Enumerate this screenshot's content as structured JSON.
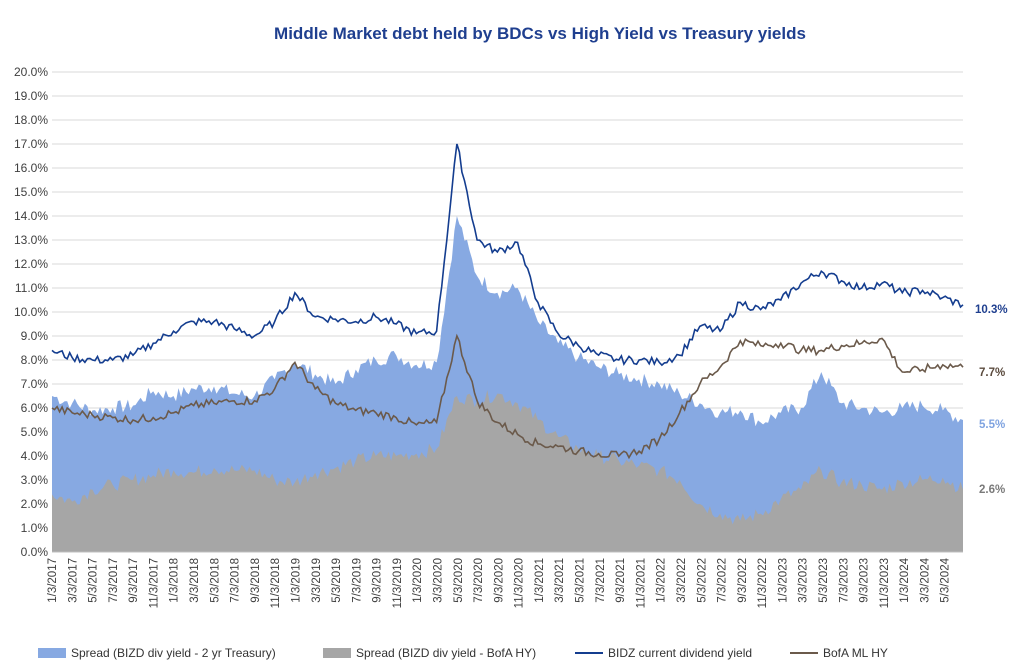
{
  "chart_data": {
    "type": "area",
    "title": "Middle Market debt held by BDCs vs High Yield vs Treasury yields",
    "xlabel": "",
    "ylabel": "",
    "ylim": [
      0,
      20
    ],
    "grid": true,
    "legend_position": "bottom",
    "y_ticks": [
      "0.0%",
      "1.0%",
      "2.0%",
      "3.0%",
      "4.0%",
      "5.0%",
      "6.0%",
      "7.0%",
      "8.0%",
      "9.0%",
      "10.0%",
      "11.0%",
      "12.0%",
      "13.0%",
      "14.0%",
      "15.0%",
      "16.0%",
      "17.0%",
      "18.0%",
      "19.0%",
      "20.0%"
    ],
    "x_ticks": [
      "1/3/2017",
      "3/3/2017",
      "5/3/2017",
      "7/3/2017",
      "9/3/2017",
      "11/3/2017",
      "1/3/2018",
      "3/3/2018",
      "5/3/2018",
      "7/3/2018",
      "9/3/2018",
      "11/3/2018",
      "1/3/2019",
      "3/3/2019",
      "5/3/2019",
      "7/3/2019",
      "9/3/2019",
      "11/3/2019",
      "1/3/2020",
      "3/3/2020",
      "5/3/2020",
      "7/3/2020",
      "9/3/2020",
      "11/3/2020",
      "1/3/2021",
      "3/3/2021",
      "5/3/2021",
      "7/3/2021",
      "9/3/2021",
      "11/3/2021",
      "1/3/2022",
      "3/3/2022",
      "5/3/2022",
      "7/3/2022",
      "9/3/2022",
      "11/3/2022",
      "1/3/2023",
      "3/3/2023",
      "5/3/2023",
      "7/3/2023",
      "9/3/2023",
      "11/3/2023",
      "1/3/2024",
      "3/3/2024",
      "5/3/2024"
    ],
    "x": [
      "2017-01",
      "2017-03",
      "2017-05",
      "2017-07",
      "2017-09",
      "2017-11",
      "2018-01",
      "2018-03",
      "2018-05",
      "2018-07",
      "2018-09",
      "2018-11",
      "2019-01",
      "2019-03",
      "2019-05",
      "2019-07",
      "2019-09",
      "2019-11",
      "2020-01",
      "2020-03",
      "2020-05",
      "2020-07",
      "2020-09",
      "2020-11",
      "2021-01",
      "2021-03",
      "2021-05",
      "2021-07",
      "2021-09",
      "2021-11",
      "2022-01",
      "2022-03",
      "2022-05",
      "2022-07",
      "2022-09",
      "2022-11",
      "2023-01",
      "2023-03",
      "2023-05",
      "2023-07",
      "2023-09",
      "2023-11",
      "2024-01",
      "2024-03",
      "2024-05",
      "2024-07"
    ],
    "series": [
      {
        "name": "Spread (BIZD div yield - 2 yr Treasury)",
        "type": "area",
        "color": "#87a9e2",
        "values": [
          6.5,
          6.2,
          5.9,
          6.0,
          6.1,
          6.7,
          6.5,
          6.8,
          6.9,
          6.6,
          6.5,
          7.2,
          7.9,
          7.4,
          7.0,
          7.6,
          8.0,
          8.2,
          7.8,
          7.9,
          14.0,
          11.5,
          10.8,
          11.0,
          9.6,
          8.7,
          8.1,
          7.7,
          7.4,
          7.2,
          7.0,
          6.6,
          6.2,
          5.8,
          5.9,
          5.4,
          5.8,
          6.0,
          7.5,
          6.2,
          6.0,
          5.8,
          6.0,
          6.1,
          5.9,
          5.5
        ]
      },
      {
        "name": "Spread (BIZD div yield - BofA HY)",
        "type": "area",
        "color": "#a6a6a6",
        "values": [
          2.4,
          2.1,
          2.6,
          2.8,
          3.0,
          3.2,
          3.4,
          3.3,
          3.5,
          3.4,
          3.4,
          3.0,
          2.9,
          3.3,
          3.5,
          3.8,
          4.0,
          4.0,
          4.1,
          4.3,
          6.5,
          6.3,
          6.6,
          6.2,
          5.5,
          4.8,
          4.3,
          4.0,
          3.8,
          3.6,
          3.4,
          3.0,
          2.0,
          1.6,
          1.3,
          1.6,
          2.2,
          2.6,
          3.4,
          2.9,
          2.8,
          2.6,
          2.9,
          3.0,
          3.1,
          2.6
        ]
      },
      {
        "name": "BIDZ current dividend yield",
        "type": "line",
        "color": "#143d8f",
        "values": [
          8.4,
          8.1,
          8.0,
          8.0,
          8.2,
          8.7,
          9.2,
          9.6,
          9.6,
          9.3,
          9.0,
          9.6,
          10.8,
          9.8,
          9.7,
          9.6,
          9.8,
          9.5,
          9.1,
          9.2,
          17.0,
          13.0,
          12.5,
          12.9,
          10.4,
          9.1,
          8.6,
          8.2,
          8.0,
          8.0,
          7.9,
          8.2,
          9.4,
          9.2,
          10.4,
          10.1,
          10.5,
          11.2,
          11.7,
          11.3,
          11.0,
          11.2,
          10.8,
          10.9,
          10.6,
          10.3
        ]
      },
      {
        "name": "BofA ML HY",
        "type": "line",
        "color": "#6b5a4b",
        "values": [
          6.0,
          5.8,
          5.7,
          5.6,
          5.5,
          5.6,
          5.8,
          6.1,
          6.2,
          6.3,
          6.3,
          6.8,
          7.9,
          6.8,
          6.2,
          5.9,
          5.8,
          5.6,
          5.3,
          5.4,
          9.0,
          6.3,
          5.4,
          4.9,
          4.5,
          4.4,
          4.2,
          4.1,
          4.0,
          4.2,
          4.7,
          5.8,
          7.0,
          7.7,
          8.8,
          8.6,
          8.7,
          8.4,
          8.4,
          8.6,
          8.7,
          8.9,
          7.5,
          7.6,
          7.8,
          7.7
        ]
      }
    ],
    "end_labels": [
      {
        "text": "10.3%",
        "color": "#1f3f8f"
      },
      {
        "text": "7.7%",
        "color": "#5a4a3d"
      },
      {
        "text": "5.5%",
        "color": "#7fa3e0"
      },
      {
        "text": "2.6%",
        "color": "#7a7a7a"
      }
    ]
  }
}
